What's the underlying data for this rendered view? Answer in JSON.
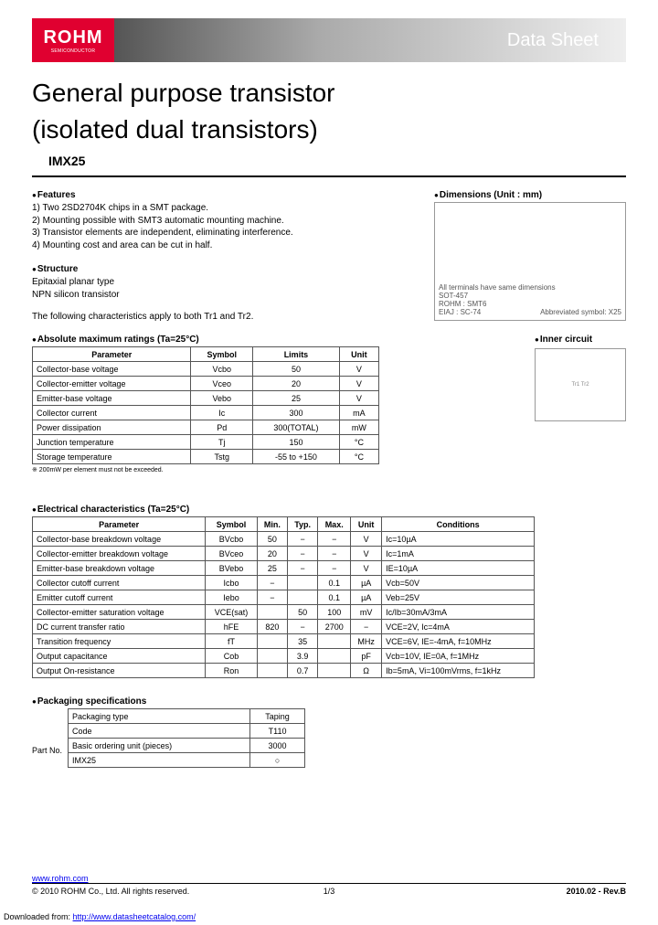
{
  "header": {
    "logo_text": "ROHM",
    "logo_sub": "SEMICONDUCTOR",
    "band_label": "Data Sheet"
  },
  "title_line1": "General purpose transistor",
  "title_line2": "(isolated dual transistors)",
  "part_number": "IMX25",
  "features": {
    "heading": "Features",
    "items": [
      "1) Two 2SD2704K chips in a SMT package.",
      "2) Mounting possible with SMT3 automatic mounting machine.",
      "3) Transistor elements are independent, eliminating interference.",
      "4) Mounting cost and area can be cut in half."
    ]
  },
  "structure": {
    "heading": "Structure",
    "line1": "Epitaxial planar type",
    "line2": "NPN silicon transistor",
    "note": "The following characteristics apply to both Tr1 and Tr2."
  },
  "dimensions": {
    "heading": "Dimensions (Unit : mm)",
    "caption1": "All terminals have same dimensions",
    "caption2": "SOT-457",
    "caption3": "ROHM : SMT6",
    "caption4": "EIAJ : SC-74",
    "caption5": "Abbreviated symbol: X25"
  },
  "abs_ratings": {
    "heading": "Absolute maximum ratings (Ta=25°C)",
    "columns": [
      "Parameter",
      "Symbol",
      "Limits",
      "Unit"
    ],
    "rows": [
      [
        "Collector-base voltage",
        "Vcbo",
        "50",
        "V"
      ],
      [
        "Collector-emitter voltage",
        "Vceo",
        "20",
        "V"
      ],
      [
        "Emitter-base voltage",
        "Vebo",
        "25",
        "V"
      ],
      [
        "Collector current",
        "Ic",
        "300",
        "mA"
      ],
      [
        "Power dissipation",
        "Pd",
        "300(TOTAL)",
        "mW"
      ],
      [
        "Junction temperature",
        "Tj",
        "150",
        "°C"
      ],
      [
        "Storage temperature",
        "Tstg",
        "-55 to +150",
        "°C"
      ]
    ],
    "note": "※ 200mW per element must not be exceeded."
  },
  "inner_circuit": {
    "heading": "Inner circuit"
  },
  "electrical": {
    "heading": "Electrical characteristics (Ta=25°C)",
    "columns": [
      "Parameter",
      "Symbol",
      "Min.",
      "Typ.",
      "Max.",
      "Unit",
      "Conditions"
    ],
    "rows": [
      [
        "Collector-base breakdown voltage",
        "BVcbo",
        "50",
        "−",
        "−",
        "V",
        "Ic=10µA"
      ],
      [
        "Collector-emitter breakdown voltage",
        "BVceo",
        "20",
        "−",
        "−",
        "V",
        "Ic=1mA"
      ],
      [
        "Emitter-base breakdown voltage",
        "BVebo",
        "25",
        "−",
        "−",
        "V",
        "IE=10µA"
      ],
      [
        "Collector cutoff current",
        "Icbo",
        "−",
        "",
        "0.1",
        "µA",
        "Vcb=50V"
      ],
      [
        "Emitter cutoff current",
        "Iebo",
        "−",
        "",
        "0.1",
        "µA",
        "Veb=25V"
      ],
      [
        "Collector-emitter saturation voltage",
        "VCE(sat)",
        "",
        "50",
        "100",
        "mV",
        "Ic/Ib=30mA/3mA"
      ],
      [
        "DC current transfer ratio",
        "hFE",
        "820",
        "−",
        "2700",
        "−",
        "VCE=2V, Ic=4mA"
      ],
      [
        "Transition frequency",
        "fT",
        "",
        "35",
        "",
        "MHz",
        "VCE=6V, IE=-4mA, f=10MHz"
      ],
      [
        "Output capacitance",
        "Cob",
        "",
        "3.9",
        "",
        "pF",
        "Vcb=10V, IE=0A, f=1MHz"
      ],
      [
        "Output On-resistance",
        "Ron",
        "",
        "0.7",
        "",
        "Ω",
        "Ib=5mA, Vi=100mVrms, f=1kHz"
      ]
    ]
  },
  "packaging": {
    "heading": "Packaging specifications",
    "col1_label": "Packaging type",
    "col1_val": "Taping",
    "col2_label": "Code",
    "col2_val": "T110",
    "row_label": "Part No.",
    "col3_label": "Basic ordering unit (pieces)",
    "col3_val": "3000",
    "part": "IMX25",
    "mark": "○"
  },
  "footer": {
    "url": "www.rohm.com",
    "copyright": "© 2010 ROHM Co., Ltd. All rights reserved.",
    "page": "1/3",
    "rev": "2010.02 - Rev.B",
    "download_prefix": "Downloaded from: ",
    "download_url": "http://www.datasheetcatalog.com/"
  },
  "colors": {
    "logo_bg": "#e00030",
    "text": "#000000",
    "border": "#555555"
  }
}
